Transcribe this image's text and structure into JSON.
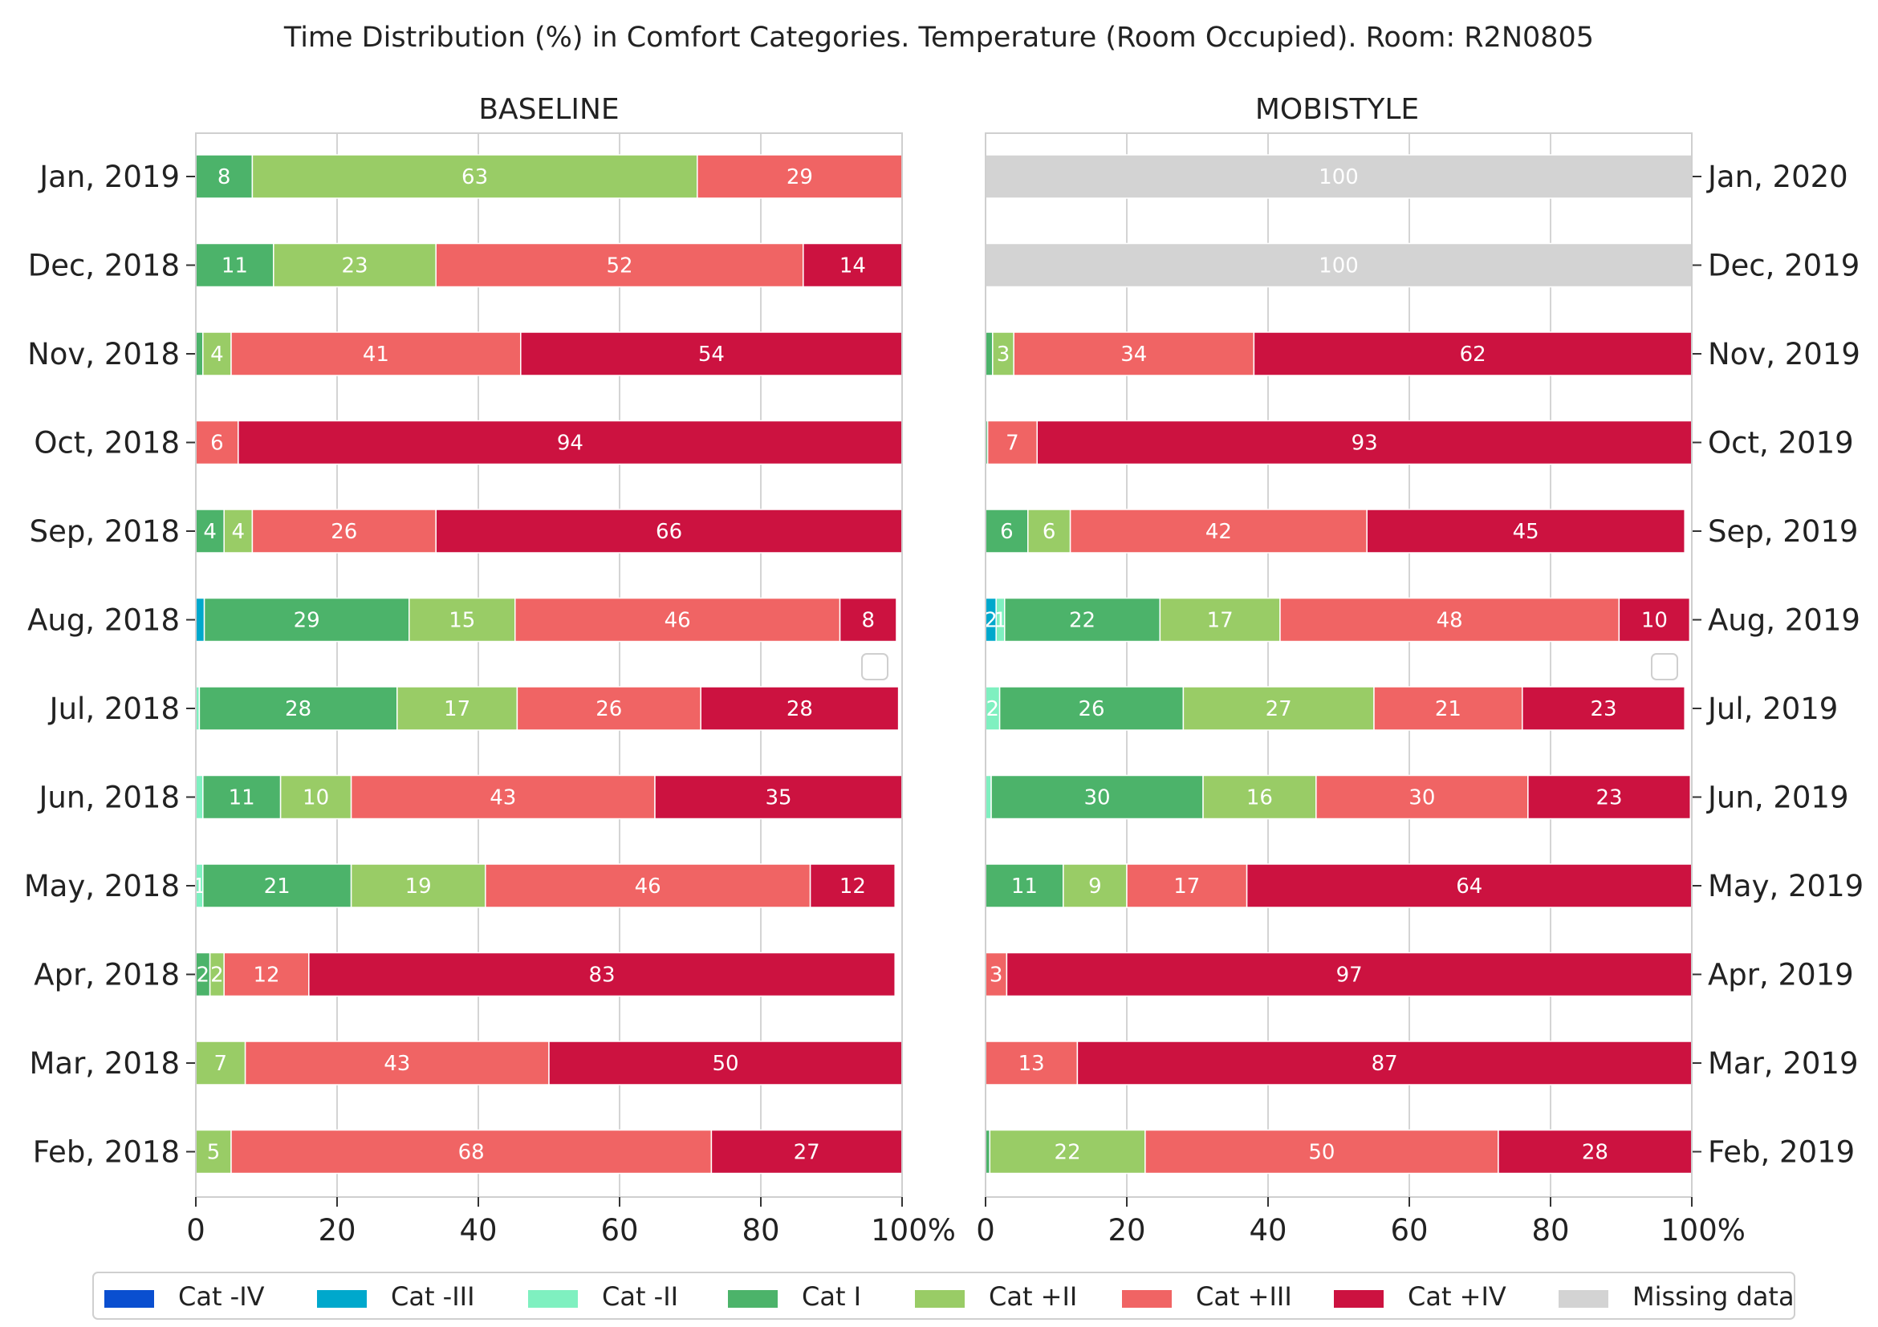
{
  "chart_data": {
    "type": "bar",
    "orientation": "horizontal",
    "stacked": true,
    "title": "Time Distribution (%) in Comfort Categories. Temperature (Room Occupied). Room: R2N0805",
    "xlim": [
      0,
      100
    ],
    "x_ticks": [
      "0",
      "20",
      "40",
      "60",
      "80",
      "100%"
    ],
    "x_tick_values": [
      0,
      20,
      40,
      60,
      80,
      100
    ],
    "grid": true,
    "legend_position": "bottom",
    "categories": [
      "Cat -IV",
      "Cat -III",
      "Cat -II",
      "Cat I",
      "Cat +II",
      "Cat +III",
      "Cat +IV",
      "Missing data"
    ],
    "colors": [
      "#0a4fd0",
      "#00a8cc",
      "#7ff0c0",
      "#4cb36a",
      "#99cc66",
      "#f06464",
      "#cc1240",
      "#d3d3d3"
    ],
    "panels": [
      {
        "title": "BASELINE",
        "months": [
          "Jan, 2019",
          "Dec, 2018",
          "Nov, 2018",
          "Oct, 2018",
          "Sep, 2018",
          "Aug, 2018",
          "Jul, 2018",
          "Jun, 2018",
          "May, 2018",
          "Apr, 2018",
          "Mar, 2018",
          "Feb, 2018"
        ],
        "values": [
          [
            0,
            0,
            0,
            8,
            63,
            29,
            0,
            0
          ],
          [
            0,
            0,
            0,
            11,
            23,
            52,
            14,
            0
          ],
          [
            0,
            0,
            0,
            1,
            4,
            41,
            54,
            0
          ],
          [
            0,
            0,
            0,
            0,
            0,
            6,
            94,
            0
          ],
          [
            0,
            0,
            0,
            4,
            4,
            26,
            66,
            0
          ],
          [
            0,
            1.2,
            0,
            29,
            15,
            46,
            8,
            0
          ],
          [
            0,
            0,
            0.5,
            28,
            17,
            26,
            28,
            0
          ],
          [
            0,
            0,
            1,
            11,
            10,
            43,
            35,
            0
          ],
          [
            0,
            0,
            1,
            21,
            19,
            46,
            12,
            0
          ],
          [
            0,
            0,
            0,
            2,
            2,
            12,
            83,
            0
          ],
          [
            0,
            0,
            0,
            0,
            7,
            43,
            50,
            0
          ],
          [
            0,
            0,
            0,
            0,
            5,
            68,
            27,
            0
          ]
        ],
        "labels": [
          [
            "",
            "",
            "",
            "8",
            "63",
            "29",
            "",
            ""
          ],
          [
            "",
            "",
            "",
            "11",
            "23",
            "52",
            "14",
            ""
          ],
          [
            "",
            "",
            "",
            "",
            "4",
            "41",
            "54",
            ""
          ],
          [
            "",
            "",
            "",
            "",
            "",
            "6",
            "94",
            ""
          ],
          [
            "",
            "",
            "",
            "4",
            "4",
            "26",
            "66",
            ""
          ],
          [
            "",
            "",
            "",
            "29",
            "15",
            "46",
            "8",
            ""
          ],
          [
            "",
            "",
            "",
            "28",
            "17",
            "26",
            "28",
            ""
          ],
          [
            "",
            "",
            "",
            "11",
            "10",
            "43",
            "35",
            ""
          ],
          [
            "",
            "",
            "1",
            "21",
            "19",
            "46",
            "12",
            ""
          ],
          [
            "",
            "",
            "",
            "2",
            "2",
            "12",
            "83",
            ""
          ],
          [
            "",
            "",
            "",
            "",
            "7",
            "43",
            "50",
            ""
          ],
          [
            "",
            "",
            "",
            "",
            "5",
            "68",
            "27",
            ""
          ]
        ]
      },
      {
        "title": "MOBISTYLE",
        "months": [
          "Jan, 2020",
          "Dec, 2019",
          "Nov, 2019",
          "Oct, 2019",
          "Sep, 2019",
          "Aug, 2019",
          "Jul, 2019",
          "Jun, 2019",
          "May, 2019",
          "Apr, 2019",
          "Mar, 2019",
          "Feb, 2019"
        ],
        "values": [
          [
            0,
            0,
            0,
            0,
            0,
            0,
            0,
            100
          ],
          [
            0,
            0,
            0,
            0,
            0,
            0,
            0,
            100
          ],
          [
            0,
            0,
            0,
            1,
            3,
            34,
            62,
            0
          ],
          [
            0,
            0,
            0,
            0.3,
            0,
            7,
            93,
            0
          ],
          [
            0,
            0,
            0,
            6,
            6,
            42,
            45,
            0
          ],
          [
            0,
            1.5,
            1.2,
            22,
            17,
            48,
            10,
            0
          ],
          [
            0,
            0,
            2,
            26,
            27,
            21,
            23,
            0
          ],
          [
            0,
            0,
            0.8,
            30,
            16,
            30,
            23,
            0
          ],
          [
            0,
            0,
            0,
            11,
            9,
            17,
            64,
            0
          ],
          [
            0,
            0,
            0,
            0,
            0,
            3,
            97,
            0
          ],
          [
            0,
            0,
            0,
            0,
            0,
            13,
            87,
            0
          ],
          [
            0,
            0,
            0,
            0.6,
            22,
            50,
            28,
            0
          ]
        ],
        "labels": [
          [
            "",
            "",
            "",
            "",
            "",
            "",
            "",
            "100"
          ],
          [
            "",
            "",
            "",
            "",
            "",
            "",
            "",
            "100"
          ],
          [
            "",
            "",
            "",
            "",
            "3",
            "34",
            "62",
            ""
          ],
          [
            "",
            "",
            "",
            "",
            "",
            "7",
            "93",
            ""
          ],
          [
            "",
            "",
            "",
            "6",
            "6",
            "42",
            "45",
            ""
          ],
          [
            "",
            "2",
            "1",
            "22",
            "17",
            "48",
            "10",
            ""
          ],
          [
            "",
            "",
            "2",
            "26",
            "27",
            "21",
            "23",
            ""
          ],
          [
            "",
            "",
            "",
            "30",
            "16",
            "30",
            "23",
            ""
          ],
          [
            "",
            "",
            "",
            "11",
            "9",
            "17",
            "64",
            ""
          ],
          [
            "",
            "",
            "",
            "",
            "",
            "3",
            "97",
            ""
          ],
          [
            "",
            "",
            "",
            "",
            "",
            "13",
            "87",
            ""
          ],
          [
            "",
            "",
            "",
            "",
            "22",
            "50",
            "28",
            ""
          ]
        ]
      }
    ]
  }
}
